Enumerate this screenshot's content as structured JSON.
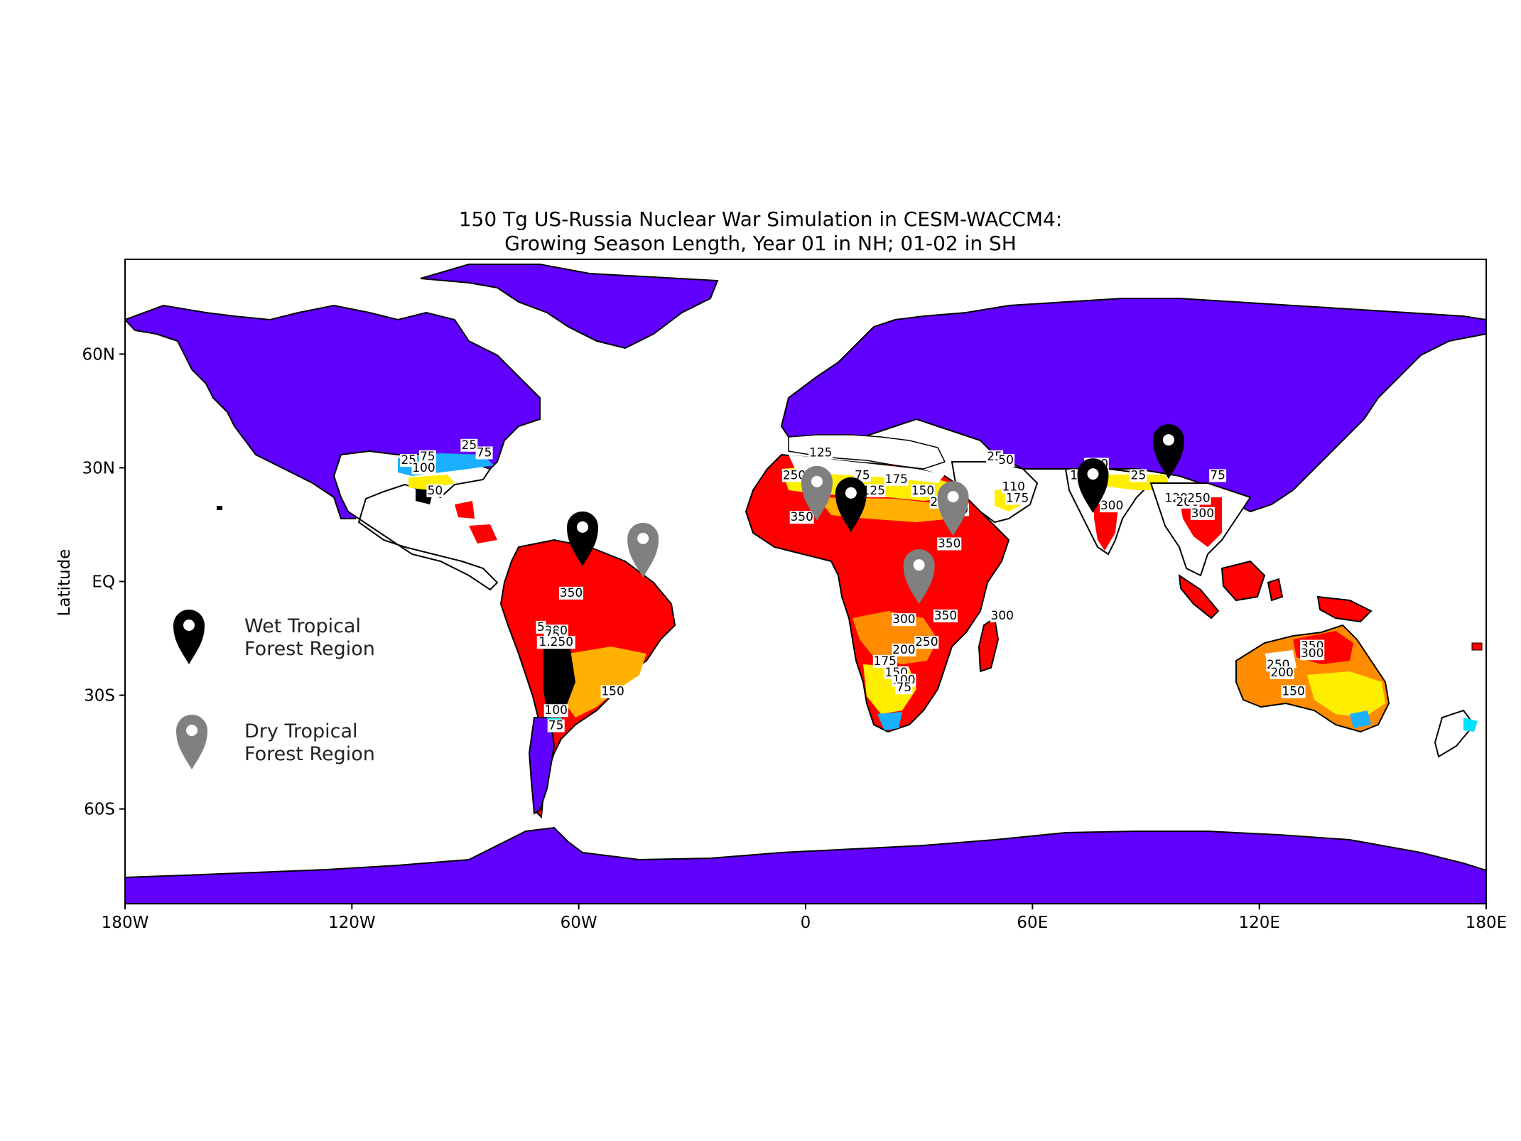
{
  "title": {
    "line1": "150 Tg US-Russia Nuclear War Simulation in CESM-WACCM4:",
    "line2": "Growing Season Length, Year 01 in NH; 01-02 in SH"
  },
  "axes": {
    "ylabel": "Latitude",
    "x_ticks": [
      {
        "lon": -180,
        "label": "180W"
      },
      {
        "lon": -120,
        "label": "120W"
      },
      {
        "lon": -60,
        "label": "60W"
      },
      {
        "lon": 0,
        "label": "0"
      },
      {
        "lon": 60,
        "label": "60E"
      },
      {
        "lon": 120,
        "label": "120E"
      },
      {
        "lon": 180,
        "label": "180E"
      }
    ],
    "y_ticks": [
      {
        "lat": 60,
        "label": "60N"
      },
      {
        "lat": 30,
        "label": "30N"
      },
      {
        "lat": 0,
        "label": "EQ"
      },
      {
        "lat": -30,
        "label": "30S"
      },
      {
        "lat": -60,
        "label": "60S"
      }
    ],
    "lon_range": [
      -180,
      180
    ],
    "lat_range": [
      -85,
      85
    ]
  },
  "colors": {
    "zero_season": "#6000ff",
    "c25": "#1ab0ff",
    "c75": "#00e0ff",
    "c150": "#ffee00",
    "c200": "#ffb000",
    "c250": "#ff8c00",
    "c350": "#ff0000",
    "coast": "#000000",
    "wet_marker": "#000000",
    "dry_marker": "#808080"
  },
  "legend": {
    "wet": {
      "line1": "Wet Tropical",
      "line2": "Forest Region",
      "color": "#000000"
    },
    "dry": {
      "line1": "Dry Tropical",
      "line2": "Forest Region",
      "color": "#808080"
    }
  },
  "markers": [
    {
      "type": "wet",
      "lon": -59,
      "lat": 5
    },
    {
      "type": "dry",
      "lon": -43,
      "lat": 2
    },
    {
      "type": "dry",
      "lon": 3,
      "lat": 17
    },
    {
      "type": "wet",
      "lon": 12,
      "lat": 14
    },
    {
      "type": "dry",
      "lon": 39,
      "lat": 13
    },
    {
      "type": "dry",
      "lon": 30,
      "lat": -5
    },
    {
      "type": "wet",
      "lon": 76,
      "lat": 19
    },
    {
      "type": "wet",
      "lon": 96,
      "lat": 28
    }
  ],
  "contour_labels": [
    {
      "text": "25",
      "lon": -105,
      "lat": 31
    },
    {
      "text": "75",
      "lon": -100,
      "lat": 32
    },
    {
      "text": "100",
      "lon": -101,
      "lat": 29
    },
    {
      "text": "25",
      "lon": -89,
      "lat": 35
    },
    {
      "text": "75",
      "lon": -85,
      "lat": 33
    },
    {
      "text": "50",
      "lon": -98,
      "lat": 23
    },
    {
      "text": "350",
      "lon": -62,
      "lat": -4
    },
    {
      "text": "5",
      "lon": -70,
      "lat": -13
    },
    {
      "text": "300",
      "lon": -66,
      "lat": -14
    },
    {
      "text": "75",
      "lon": -67,
      "lat": -15
    },
    {
      "text": "1.250",
      "lon": -66,
      "lat": -17
    },
    {
      "text": "150",
      "lon": -51,
      "lat": -30
    },
    {
      "text": "100",
      "lon": -66,
      "lat": -35
    },
    {
      "text": "75",
      "lon": -66,
      "lat": -39
    },
    {
      "text": "125",
      "lon": 4,
      "lat": 33
    },
    {
      "text": "250",
      "lon": -3,
      "lat": 27
    },
    {
      "text": "75",
      "lon": 15,
      "lat": 27
    },
    {
      "text": "150",
      "lon": 31,
      "lat": 23
    },
    {
      "text": "175",
      "lon": 24,
      "lat": 26
    },
    {
      "text": "125",
      "lon": 18,
      "lat": 23
    },
    {
      "text": "200",
      "lon": 36,
      "lat": 20
    },
    {
      "text": "300",
      "lon": 40,
      "lat": 18
    },
    {
      "text": "350",
      "lon": -1,
      "lat": 16
    },
    {
      "text": "350",
      "lon": 38,
      "lat": 9
    },
    {
      "text": "25",
      "lon": 50,
      "lat": 32
    },
    {
      "text": "50",
      "lon": 53,
      "lat": 31
    },
    {
      "text": "110",
      "lon": 55,
      "lat": 24
    },
    {
      "text": "175",
      "lon": 56,
      "lat": 21
    },
    {
      "text": "300",
      "lon": 26,
      "lat": -11
    },
    {
      "text": "350",
      "lon": 37,
      "lat": -10
    },
    {
      "text": "300",
      "lon": 52,
      "lat": -10
    },
    {
      "text": "250",
      "lon": 32,
      "lat": -17
    },
    {
      "text": "200",
      "lon": 26,
      "lat": -19
    },
    {
      "text": "175",
      "lon": 21,
      "lat": -22
    },
    {
      "text": "150",
      "lon": 24,
      "lat": -25
    },
    {
      "text": "100",
      "lon": 26,
      "lat": -27
    },
    {
      "text": "75",
      "lon": 26,
      "lat": -29
    },
    {
      "text": "5",
      "lon": 75,
      "lat": 30
    },
    {
      "text": "100",
      "lon": 77,
      "lat": 30
    },
    {
      "text": "125",
      "lon": 73,
      "lat": 27
    },
    {
      "text": "25",
      "lon": 88,
      "lat": 27
    },
    {
      "text": "300",
      "lon": 81,
      "lat": 19
    },
    {
      "text": "120",
      "lon": 98,
      "lat": 21
    },
    {
      "text": "200",
      "lon": 101,
      "lat": 20
    },
    {
      "text": "250",
      "lon": 104,
      "lat": 21
    },
    {
      "text": "300",
      "lon": 105,
      "lat": 17
    },
    {
      "text": "75",
      "lon": 109,
      "lat": 27
    },
    {
      "text": "350",
      "lon": 134,
      "lat": -18
    },
    {
      "text": "300",
      "lon": 134,
      "lat": -20
    },
    {
      "text": "250",
      "lon": 125,
      "lat": -23
    },
    {
      "text": "200",
      "lon": 126,
      "lat": -25
    },
    {
      "text": "150",
      "lon": 129,
      "lat": -30
    }
  ]
}
